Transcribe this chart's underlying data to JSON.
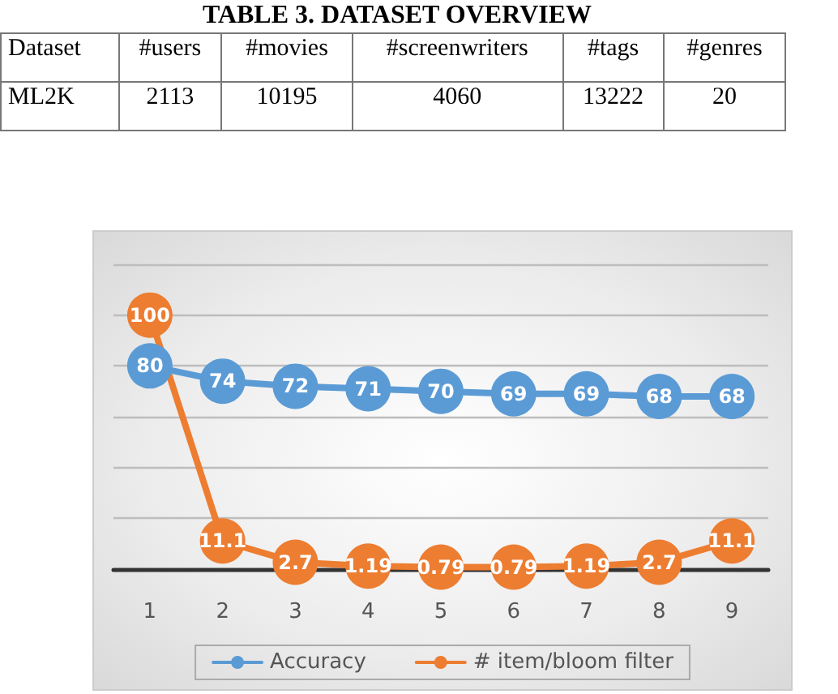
{
  "chart_data": [
    {
      "type": "other",
      "title": "TABLE 3. DATASET OVERVIEW",
      "ylabel": "Dataset",
      "categories": [
        "#users",
        "#movies",
        "#screenwriters",
        "#tags",
        "#genres"
      ],
      "y_categories": [
        "ML2K"
      ],
      "values": [
        2113,
        10195,
        4060,
        13222,
        20
      ],
      "data_labels": true
    },
    {
      "type": "line",
      "categories": [
        "1",
        "2",
        "3",
        "4",
        "5",
        "6",
        "7",
        "8",
        "9"
      ],
      "series": [
        {
          "name": "Accuracy",
          "color": "#5b9bd5",
          "values": [
            80,
            74,
            72,
            71,
            70,
            69,
            69,
            68,
            68
          ]
        },
        {
          "name": "# item/bloom filter",
          "color": "#ed7d31",
          "values": [
            100,
            11.1,
            2.7,
            1.19,
            0.79,
            0.79,
            1.19,
            2.7,
            11.1
          ]
        }
      ],
      "ylim": [
        0,
        120
      ],
      "yticks": [
        {
          "value": 0,
          "label": null
        },
        {
          "value": 20,
          "label": null
        },
        {
          "value": 40,
          "label": null
        },
        {
          "value": 60,
          "label": null
        },
        {
          "value": 80,
          "label": null
        },
        {
          "value": 100,
          "label": null
        },
        {
          "value": 120,
          "label": null
        }
      ],
      "tick_labels": "x",
      "grid": "y",
      "legend": "bottom",
      "marker": "circle",
      "line_style": "solid",
      "data_labels": true
    }
  ]
}
